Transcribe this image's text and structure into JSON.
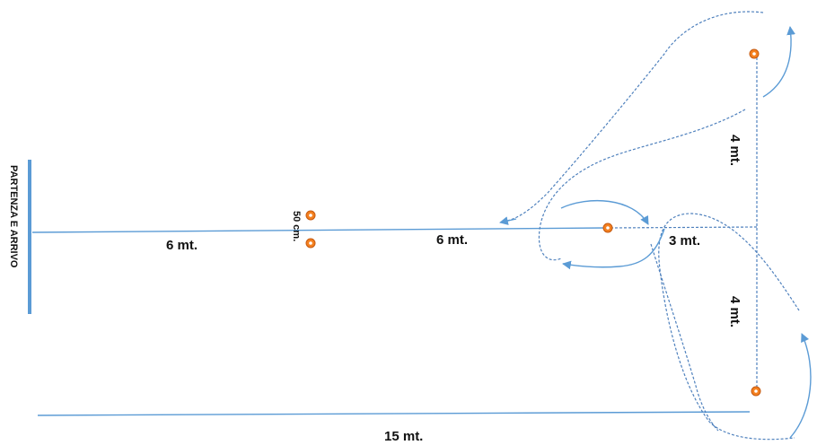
{
  "start_label": "PARTENZA E ARRIVO",
  "labels": {
    "first_segment": "6 mt.",
    "second_segment": "6 mt.",
    "cone_gap": "50 cm.",
    "third_segment": "3 mt.",
    "upper_vertical": "4 mt.",
    "lower_vertical": "4 mt.",
    "total_length": "15 mt."
  },
  "colors": {
    "line": "#5b9bd5",
    "start_bar": "#5b9bd5",
    "cone_fill": "#f4801f",
    "path": "#4f81bd"
  }
}
